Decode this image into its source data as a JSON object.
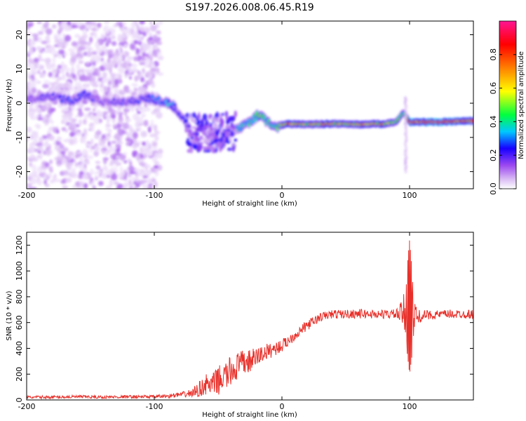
{
  "title": "S197.2026.008.06.45.R19",
  "chart_data": [
    {
      "type": "heatmap",
      "xlabel": "Height of straight line (km)",
      "ylabel": "Frequency (Hz)",
      "xlim": [
        -200,
        150
      ],
      "ylim": [
        -25,
        24
      ],
      "x_ticks": [
        -200,
        -100,
        0,
        100
      ],
      "y_ticks": [
        -20,
        -10,
        0,
        10,
        20
      ],
      "colorbar": {
        "label": "Normalized spectral amplitude",
        "range": [
          0,
          1
        ],
        "ticks": [
          "0.0",
          "0.2",
          "0.4",
          "0.6",
          "0.8"
        ],
        "colors": [
          "#ffffff",
          "#d8b8f4",
          "#9c48f0",
          "#1800ff",
          "#00c8ff",
          "#00ff40",
          "#ffff00",
          "#ff8000",
          "#ff0000",
          "#ff1493"
        ]
      },
      "ridge": {
        "x": [
          -200,
          -180,
          -165,
          -155,
          -140,
          -120,
          -105,
          -95,
          -88,
          -82,
          -76,
          -72,
          -68,
          -64,
          -58,
          -52,
          -46,
          -42,
          -38,
          -32,
          -26,
          -20,
          -17,
          -12,
          -6,
          -2,
          5,
          20,
          40,
          60,
          80,
          90,
          95,
          100,
          120,
          150
        ],
        "y": [
          1,
          2,
          0.5,
          2.5,
          0.5,
          0.5,
          1.5,
          0.5,
          0,
          -2,
          -5,
          -8,
          -10,
          -6,
          -9,
          -11,
          -12,
          -9,
          -8,
          -7,
          -5.5,
          -4,
          -3,
          -5.5,
          -7,
          -6.5,
          -6,
          -6.2,
          -6,
          -6.2,
          -6,
          -5.5,
          -2.5,
          -5.5,
          -5.5,
          -5.2
        ],
        "amplitude": [
          0.25,
          0.3,
          0.35,
          0.35,
          0.25,
          0.3,
          0.35,
          0.4,
          0.45,
          0.3,
          0.35,
          0.3,
          0.25,
          0.35,
          0.3,
          0.25,
          0.3,
          0.3,
          0.4,
          0.5,
          0.5,
          0.55,
          0.6,
          0.5,
          0.55,
          0.6,
          0.8,
          0.7,
          0.75,
          0.7,
          0.75,
          0.6,
          0.5,
          0.9,
          0.95,
          0.8
        ]
      }
    },
    {
      "type": "line",
      "xlabel": "Height of straight line (km)",
      "ylabel": "SNR (10 * v/v)",
      "xlim": [
        -200,
        150
      ],
      "ylim": [
        0,
        1300
      ],
      "x_ticks": [
        -200,
        -100,
        0,
        100
      ],
      "y_ticks": [
        0,
        200,
        400,
        600,
        800,
        1000,
        1200
      ],
      "series": [
        {
          "color": "#e8302a",
          "x": [
            -200,
            -180,
            -160,
            -140,
            -120,
            -100,
            -90,
            -80,
            -75,
            -70,
            -65,
            -60,
            -55,
            -50,
            -45,
            -40,
            -35,
            -30,
            -25,
            -20,
            -15,
            -10,
            -5,
            0,
            5,
            10,
            15,
            20,
            25,
            30,
            35,
            40,
            50,
            60,
            70,
            80,
            90,
            95,
            98,
            100,
            103,
            106,
            110,
            120,
            130,
            140,
            150
          ],
          "y": [
            20,
            22,
            25,
            22,
            25,
            25,
            30,
            40,
            45,
            55,
            80,
            120,
            110,
            150,
            180,
            220,
            260,
            290,
            300,
            330,
            360,
            380,
            400,
            420,
            460,
            500,
            540,
            580,
            610,
            640,
            655,
            665,
            665,
            670,
            665,
            665,
            665,
            670,
            700,
            720,
            650,
            640,
            655,
            660,
            665,
            665,
            665
          ],
          "noise": [
            12,
            12,
            12,
            12,
            12,
            12,
            15,
            20,
            25,
            35,
            60,
            80,
            90,
            110,
            120,
            120,
            110,
            100,
            90,
            80,
            70,
            60,
            55,
            50,
            45,
            40,
            40,
            40,
            38,
            35,
            35,
            35,
            35,
            35,
            35,
            35,
            40,
            120,
            320,
            500,
            200,
            60,
            40,
            35,
            35,
            35,
            35
          ]
        }
      ]
    }
  ]
}
